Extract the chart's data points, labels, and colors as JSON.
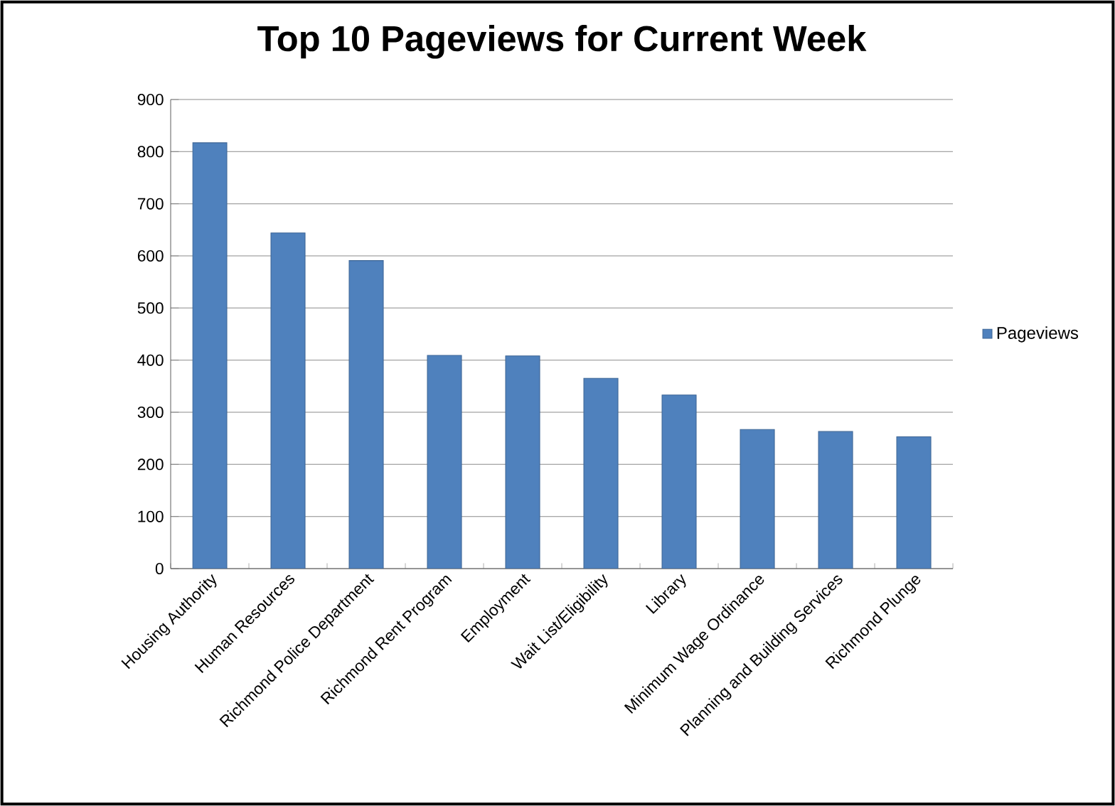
{
  "chart_data": {
    "type": "bar",
    "title": "Top 10 Pageviews for Current Week",
    "categories": [
      "Housing Authority",
      "Human Resources",
      "Richmond Police Department",
      "Richmond Rent Program",
      "Employment",
      "Wait List/Eligibility",
      "Library",
      "Minimum Wage Ordinance",
      "Planning and Building Services",
      "Richmond Plunge"
    ],
    "series": [
      {
        "name": "Pageviews",
        "color": "#4f81bd",
        "values": [
          817,
          644,
          591,
          409,
          408,
          365,
          333,
          267,
          263,
          253
        ]
      }
    ],
    "ylim": [
      0,
      900
    ],
    "yticks": [
      0,
      100,
      200,
      300,
      400,
      500,
      600,
      700,
      800,
      900
    ],
    "grid": "y",
    "legend": "right"
  }
}
